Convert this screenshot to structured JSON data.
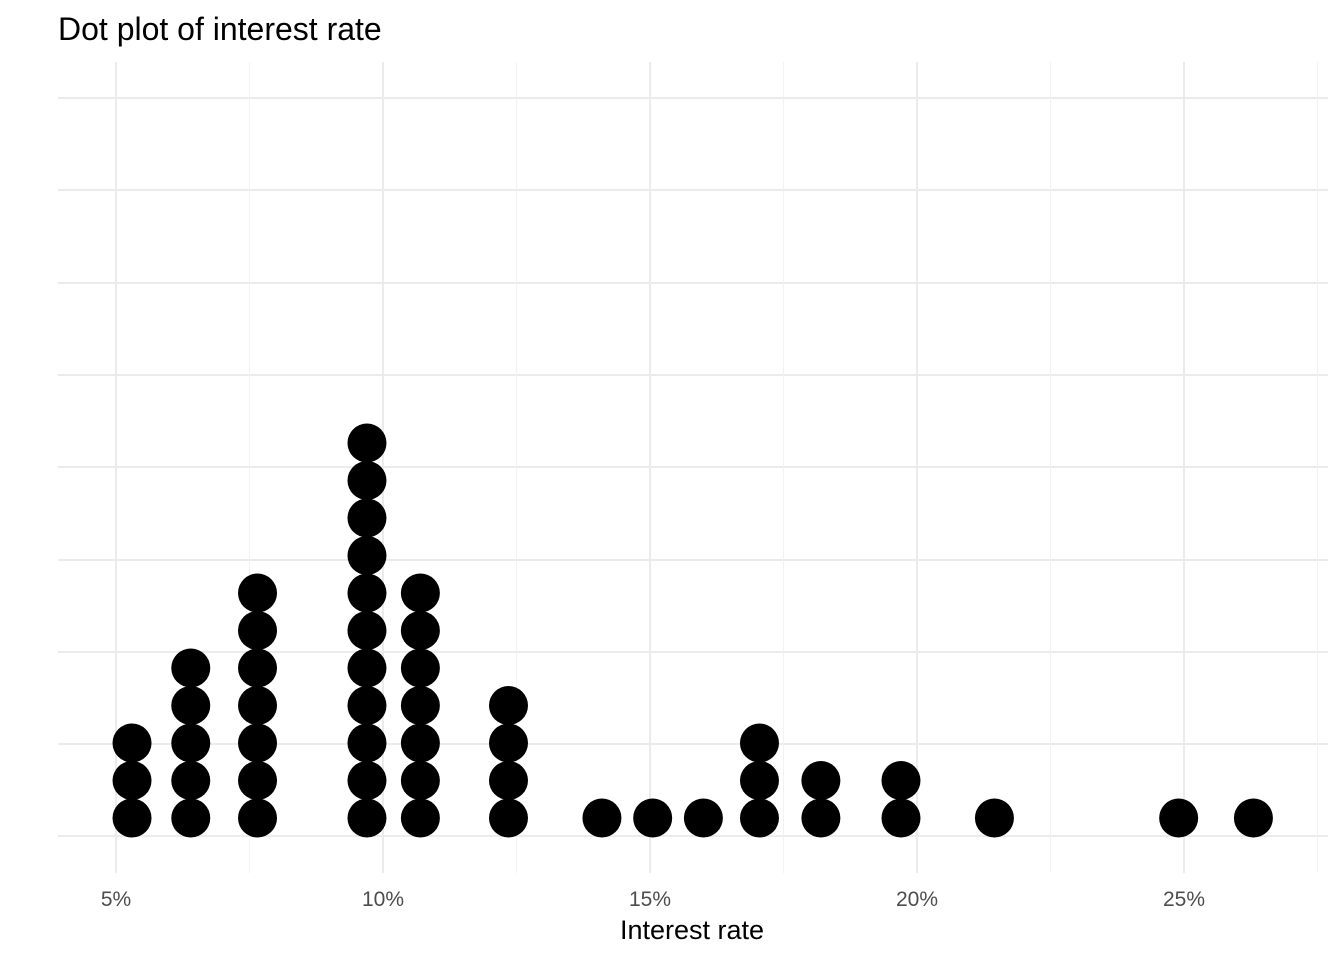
{
  "chart_data": {
    "type": "dotplot",
    "title": "Dot plot of interest rate",
    "xlabel": "Interest rate",
    "ylabel": "",
    "x_ticks": [
      5,
      10,
      15,
      20,
      25
    ],
    "x_tick_labels": [
      "5%",
      "10%",
      "15%",
      "20%",
      "25%"
    ],
    "xlim": [
      3.9,
      27.6
    ],
    "grid": true,
    "dot_color": "#000000",
    "bins": [
      {
        "x": 5.3,
        "count": 3
      },
      {
        "x": 6.4,
        "count": 5
      },
      {
        "x": 7.65,
        "count": 7
      },
      {
        "x": 9.7,
        "count": 11
      },
      {
        "x": 10.7,
        "count": 7
      },
      {
        "x": 12.35,
        "count": 4
      },
      {
        "x": 14.1,
        "count": 1
      },
      {
        "x": 15.05,
        "count": 1
      },
      {
        "x": 16.0,
        "count": 1
      },
      {
        "x": 17.05,
        "count": 3
      },
      {
        "x": 18.2,
        "count": 2
      },
      {
        "x": 19.7,
        "count": 2
      },
      {
        "x": 21.45,
        "count": 1
      },
      {
        "x": 24.9,
        "count": 1
      },
      {
        "x": 26.3,
        "count": 1
      }
    ]
  }
}
